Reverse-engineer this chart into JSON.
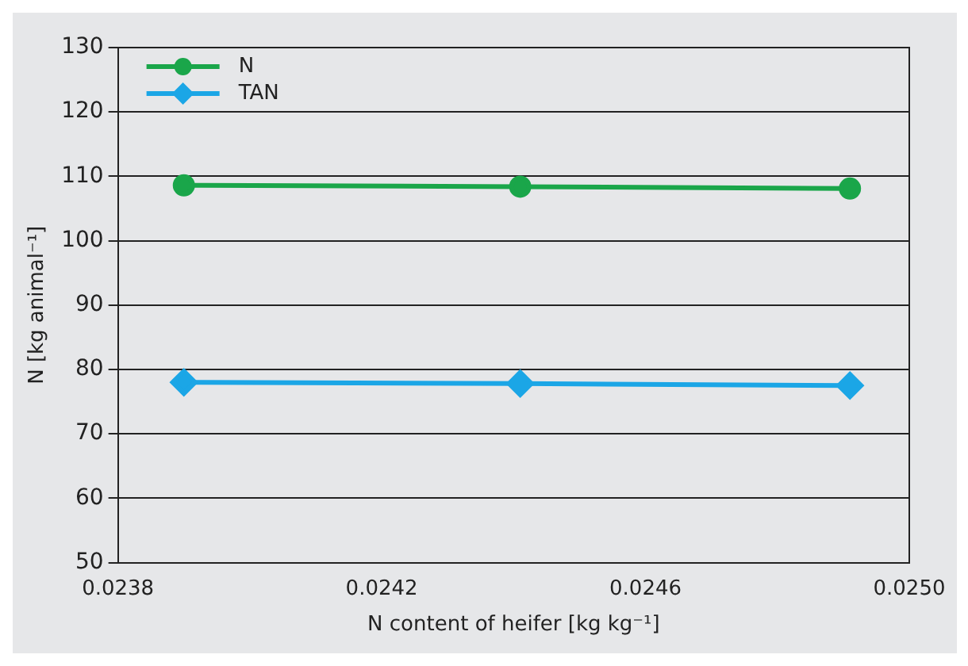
{
  "chart_data": {
    "type": "line",
    "xlabel": "N content of heifer [kg kg⁻¹]",
    "ylabel": "N [kg animal⁻¹]",
    "x": [
      0.0239,
      0.02441,
      0.02491
    ],
    "series": [
      {
        "name": "N",
        "color": "#1aa64a",
        "values": [
          108.6,
          108.4,
          108.1
        ],
        "marker": "circle"
      },
      {
        "name": "TAN",
        "color": "#1ba6e6",
        "values": [
          78,
          77.8,
          77.5
        ],
        "marker": "diamond"
      }
    ],
    "xlim": [
      0.0238,
      0.025
    ],
    "xticks": [
      0.0238,
      0.0242,
      0.0246,
      {
        "value": 0.025,
        "label": "0.0250"
      }
    ],
    "ylim": [
      50,
      130
    ],
    "yticks": [
      50,
      60,
      70,
      80,
      90,
      100,
      110,
      120,
      130
    ],
    "grid": "y",
    "legend": "top left"
  }
}
